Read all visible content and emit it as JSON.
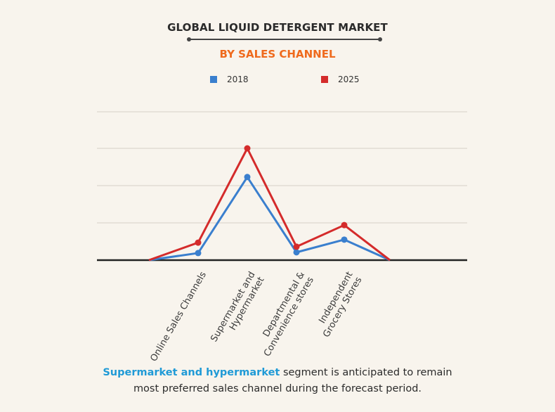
{
  "header": {
    "title": "GLOBAL LIQUID DETERGENT MARKET",
    "subtitle": "BY SALES CHANNEL"
  },
  "legend": [
    {
      "label": "2018",
      "color": "#3a7fce"
    },
    {
      "label": "2025",
      "color": "#d42b2b"
    }
  ],
  "caption": {
    "highlight": "Supermarket and hypermarket",
    "rest_line1": " segment is anticipated to remain",
    "line2": "most preferred sales channel during the forecast period."
  },
  "chart_data": {
    "type": "line",
    "title": "GLOBAL LIQUID DETERGENT MARKET",
    "subtitle": "BY SALES CHANNEL",
    "xlabel": "",
    "ylabel": "",
    "categories": [
      "",
      "Online Sales Channels",
      "Supermarket and Hypermarket",
      "Departmental & Convenience stores",
      "Independent Grocery Stores",
      ""
    ],
    "series": [
      {
        "name": "2018",
        "color": "#3a7fce",
        "values": [
          0,
          0.19,
          2.23,
          0.21,
          0.55,
          0
        ]
      },
      {
        "name": "2025",
        "color": "#d42b2b",
        "values": [
          0,
          0.47,
          3.0,
          0.36,
          0.94,
          0
        ]
      }
    ],
    "ylim": [
      0,
      4.0
    ],
    "y_units": "relative (gridline spacing = 1 unit, no axis labels shown)",
    "grid": true,
    "gridlines_y": [
      1,
      2,
      3,
      4
    ],
    "legend_position": "top"
  }
}
